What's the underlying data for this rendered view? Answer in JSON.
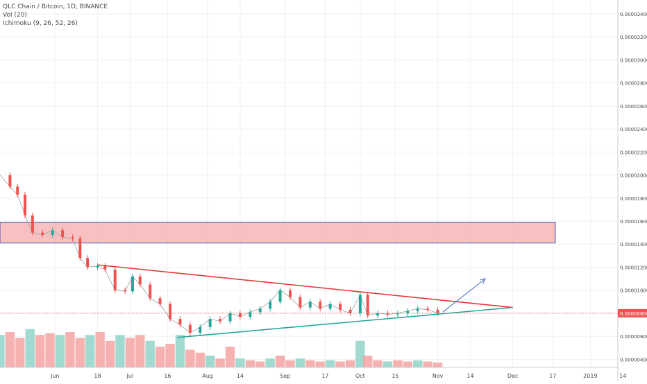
{
  "legend": {
    "symbol_line": "QLC Chain / Bitcoin, 1D, BINANCE",
    "vol_line": "Vol (20)",
    "ichimoku_line": "Ichimoku (9, 26, 52, 26)"
  },
  "current_price_label": "0.00000800",
  "chart_data": {
    "type": "candlestick",
    "title": "QLC Chain / Bitcoin, 1D, BINANCE",
    "indicators": [
      "Vol (20)",
      "Ichimoku (9, 26, 52, 26)"
    ],
    "y_tick_labels": [
      "0.00003400",
      "0.00003200",
      "0.00003000",
      "0.00002800",
      "0.00002600",
      "0.00002400",
      "0.00002200",
      "0.00002000",
      "0.00001800",
      "0.00001600",
      "0.00001400",
      "0.00001200",
      "0.00001000",
      "0.00000800",
      "0.00000600",
      "0.00000400"
    ],
    "y_ticks": [
      3.4e-05,
      3.2e-05,
      3e-05,
      2.8e-05,
      2.6e-05,
      2.4e-05,
      2.2e-05,
      2e-05,
      1.8e-05,
      1.6e-05,
      1.4e-05,
      1.2e-05,
      1e-05,
      8e-06,
      6e-06,
      4e-06
    ],
    "ylim": [
      3.3e-06,
      3.52e-05
    ],
    "x_range_days": [
      -22,
      225
    ],
    "x_ticks": [
      {
        "label": "Jun",
        "day": 0
      },
      {
        "label": "18",
        "day": 17
      },
      {
        "label": "Jul",
        "day": 30
      },
      {
        "label": "16",
        "day": 45
      },
      {
        "label": "Aug",
        "day": 61
      },
      {
        "label": "14",
        "day": 74
      },
      {
        "label": "Sep",
        "day": 92
      },
      {
        "label": "17",
        "day": 108
      },
      {
        "label": "Oct",
        "day": 122
      },
      {
        "label": "15",
        "day": 136
      },
      {
        "label": "Nov",
        "day": 153
      },
      {
        "label": "14",
        "day": 166
      },
      {
        "label": "Dec",
        "day": 183
      },
      {
        "label": "17",
        "day": 199
      },
      {
        "label": "2019",
        "day": 214
      },
      {
        "label": "14",
        "day": 227
      }
    ],
    "current_price": 8e-06,
    "close_series": [
      {
        "day": -22,
        "close": 2e-05
      },
      {
        "day": -18,
        "close": 1.9e-05
      },
      {
        "day": -15,
        "close": 1.83e-05
      },
      {
        "day": -12,
        "close": 1.65e-05
      },
      {
        "day": -9,
        "close": 1.5e-05
      },
      {
        "day": -5,
        "close": 1.48e-05
      },
      {
        "day": -1,
        "close": 1.52e-05
      },
      {
        "day": 3,
        "close": 1.46e-05
      },
      {
        "day": 7,
        "close": 1.45e-05
      },
      {
        "day": 10,
        "close": 1.28e-05
      },
      {
        "day": 13,
        "close": 1.2e-05
      },
      {
        "day": 17,
        "close": 1.21e-05
      },
      {
        "day": 20,
        "close": 1.18e-05
      },
      {
        "day": 24,
        "close": 1e-05
      },
      {
        "day": 28,
        "close": 9.9e-06
      },
      {
        "day": 31,
        "close": 1.12e-05
      },
      {
        "day": 34,
        "close": 1.05e-05
      },
      {
        "day": 38,
        "close": 9.3e-06
      },
      {
        "day": 42,
        "close": 8.8e-06
      },
      {
        "day": 46,
        "close": 7.5e-06
      },
      {
        "day": 50,
        "close": 7e-06
      },
      {
        "day": 54,
        "close": 6.3e-06
      },
      {
        "day": 58,
        "close": 6.8e-06
      },
      {
        "day": 62,
        "close": 7.5e-06
      },
      {
        "day": 66,
        "close": 7.3e-06
      },
      {
        "day": 70,
        "close": 8e-06
      },
      {
        "day": 74,
        "close": 7.7e-06
      },
      {
        "day": 78,
        "close": 8.1e-06
      },
      {
        "day": 82,
        "close": 8.4e-06
      },
      {
        "day": 86,
        "close": 9e-06
      },
      {
        "day": 90,
        "close": 1e-05
      },
      {
        "day": 94,
        "close": 9.4e-06
      },
      {
        "day": 98,
        "close": 8.5e-06
      },
      {
        "day": 102,
        "close": 9e-06
      },
      {
        "day": 106,
        "close": 8.4e-06
      },
      {
        "day": 110,
        "close": 8.8e-06
      },
      {
        "day": 114,
        "close": 8.3e-06
      },
      {
        "day": 118,
        "close": 8e-06
      },
      {
        "day": 122,
        "close": 9.6e-06
      },
      {
        "day": 125,
        "close": 7.8e-06
      },
      {
        "day": 129,
        "close": 8e-06
      },
      {
        "day": 133,
        "close": 7.9e-06
      },
      {
        "day": 137,
        "close": 8e-06
      },
      {
        "day": 141,
        "close": 8.2e-06
      },
      {
        "day": 145,
        "close": 8.4e-06
      },
      {
        "day": 149,
        "close": 8.3e-06
      },
      {
        "day": 153,
        "close": 8e-06
      }
    ],
    "volume_series": [
      {
        "day": -22,
        "volume": 0.55
      },
      {
        "day": -18,
        "volume": 0.6
      },
      {
        "day": -14,
        "volume": 0.5
      },
      {
        "day": -10,
        "volume": 0.65
      },
      {
        "day": -6,
        "volume": 0.55
      },
      {
        "day": -2,
        "volume": 0.58
      },
      {
        "day": 2,
        "volume": 0.55
      },
      {
        "day": 6,
        "volume": 0.6
      },
      {
        "day": 10,
        "volume": 0.5
      },
      {
        "day": 14,
        "volume": 0.55
      },
      {
        "day": 18,
        "volume": 0.6
      },
      {
        "day": 22,
        "volume": 0.45
      },
      {
        "day": 26,
        "volume": 0.55
      },
      {
        "day": 30,
        "volume": 0.5
      },
      {
        "day": 34,
        "volume": 0.55
      },
      {
        "day": 38,
        "volume": 0.45
      },
      {
        "day": 42,
        "volume": 0.35
      },
      {
        "day": 46,
        "volume": 0.4
      },
      {
        "day": 50,
        "volume": 0.55
      },
      {
        "day": 54,
        "volume": 0.3
      },
      {
        "day": 58,
        "volume": 0.25
      },
      {
        "day": 62,
        "volume": 0.2
      },
      {
        "day": 66,
        "volume": 0.15
      },
      {
        "day": 70,
        "volume": 0.35
      },
      {
        "day": 74,
        "volume": 0.15
      },
      {
        "day": 78,
        "volume": 0.12
      },
      {
        "day": 82,
        "volume": 0.1
      },
      {
        "day": 86,
        "volume": 0.15
      },
      {
        "day": 90,
        "volume": 0.2
      },
      {
        "day": 94,
        "volume": 0.12
      },
      {
        "day": 98,
        "volume": 0.15
      },
      {
        "day": 102,
        "volume": 0.12
      },
      {
        "day": 106,
        "volume": 0.1
      },
      {
        "day": 110,
        "volume": 0.12
      },
      {
        "day": 114,
        "volume": 0.1
      },
      {
        "day": 118,
        "volume": 0.12
      },
      {
        "day": 122,
        "volume": 0.45
      },
      {
        "day": 125,
        "volume": 0.2
      },
      {
        "day": 129,
        "volume": 0.12
      },
      {
        "day": 133,
        "volume": 0.1
      },
      {
        "day": 137,
        "volume": 0.12
      },
      {
        "day": 141,
        "volume": 0.1
      },
      {
        "day": 145,
        "volume": 0.12
      },
      {
        "day": 149,
        "volume": 0.1
      },
      {
        "day": 153,
        "volume": 0.08
      }
    ],
    "resistance_zone": {
      "day_start": -22,
      "day_end": 200,
      "price_low": 1.41e-05,
      "price_high": 1.59e-05
    },
    "trendlines": [
      {
        "name": "descending resistance",
        "color": "#e53935",
        "from": {
          "day": 17,
          "price": 1.22e-05
        },
        "to": {
          "day": 183,
          "price": 8.5e-06
        }
      },
      {
        "name": "ascending support",
        "color": "#26a69a",
        "from": {
          "day": 49,
          "price": 5.9e-06
        },
        "to": {
          "day": 183,
          "price": 8.5e-06
        }
      }
    ],
    "projection_arrow": {
      "from": {
        "day": 155,
        "price": 8.1e-06
      },
      "to": {
        "day": 172,
        "price": 1.1e-05
      }
    },
    "colors": {
      "up": "#26a69a",
      "down": "#ef5350",
      "zone_fill": "#f4a6a8",
      "zone_border": "#3f51b5",
      "arrow": "#5b7fc4",
      "kumo": "#e6a0a0"
    }
  }
}
